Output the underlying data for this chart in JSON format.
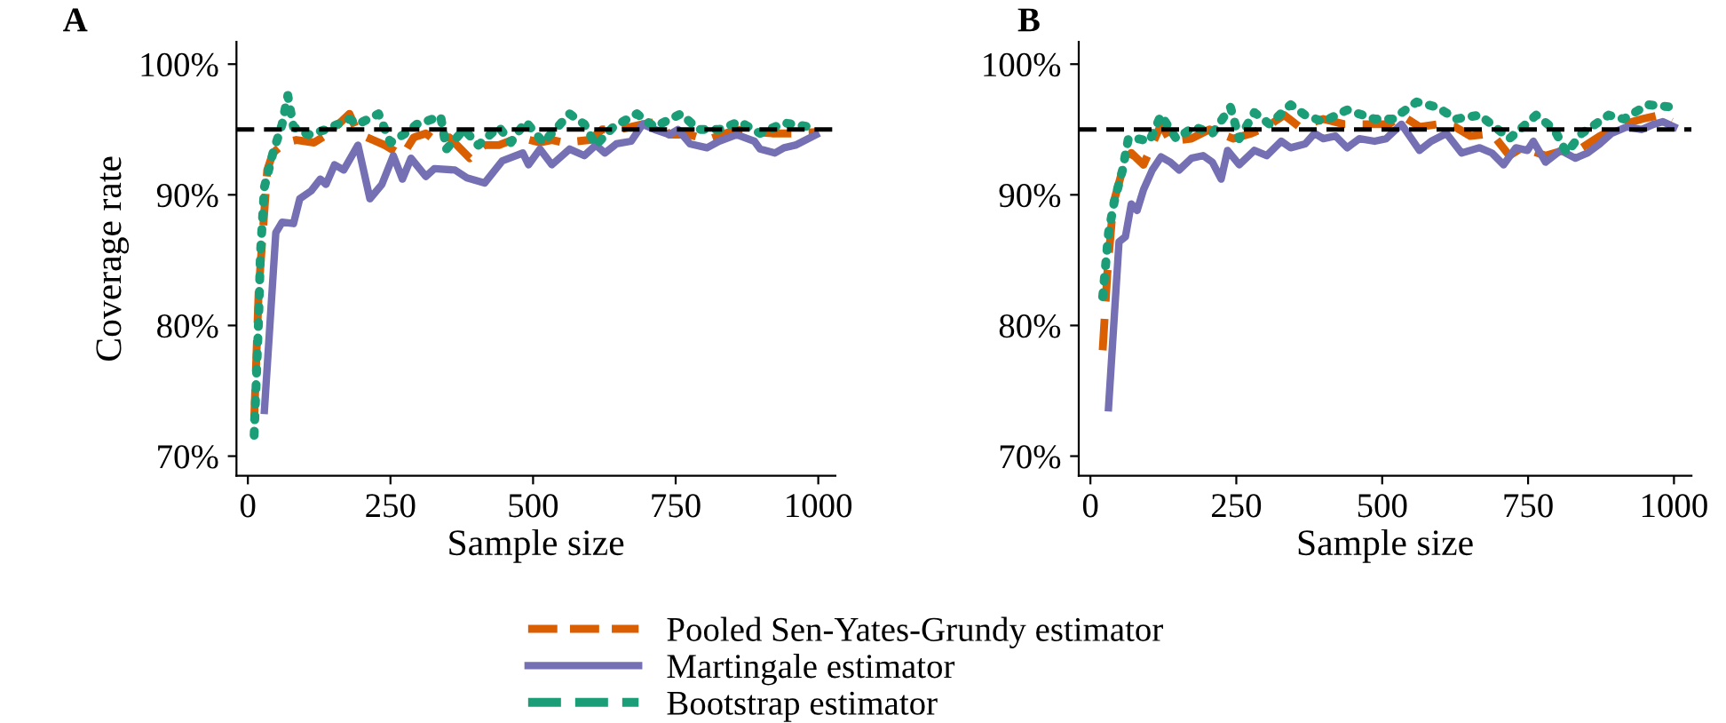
{
  "chart_data": [
    {
      "type": "line",
      "title": "A",
      "xlabel": "Sample size",
      "ylabel": "Coverage rate",
      "xlim": [
        -20,
        1030
      ],
      "xticks": [
        0,
        250,
        500,
        750,
        1000
      ],
      "ylim": [
        68.5,
        101.7
      ],
      "yticks": [
        {
          "value": 70,
          "label": "70%"
        },
        {
          "value": 80,
          "label": "80%"
        },
        {
          "value": 90,
          "label": "90%"
        },
        {
          "value": 100,
          "label": "100%"
        }
      ],
      "grid": false,
      "legend": "bottom",
      "ref_lines": [
        {
          "axis": "y",
          "value": 95,
          "color": "#000000",
          "line_style": "dashed"
        }
      ],
      "series": [
        {
          "name": "Pooled Sen-Yates-Grundy estimator",
          "color": "#d95f02",
          "line_style": "dashed",
          "x": [
            11,
            19,
            34,
            44,
            65,
            85,
            116,
            142,
            178,
            193,
            219,
            240,
            271,
            291,
            312,
            327,
            353,
            389,
            415,
            440,
            476,
            512,
            533,
            554,
            600,
            621,
            651,
            692,
            718,
            739,
            775,
            805,
            857,
            888,
            919,
            960,
            996
          ],
          "values": [
            72.7,
            82.7,
            91.9,
            93.2,
            94.0,
            94.2,
            94.0,
            94.7,
            96.2,
            94.7,
            94.2,
            93.8,
            93.0,
            94.4,
            94.7,
            94.2,
            94.4,
            92.8,
            93.8,
            93.8,
            94.4,
            94.0,
            94.2,
            94.0,
            94.2,
            95.0,
            95.0,
            95.4,
            95.6,
            94.6,
            94.6,
            94.2,
            95.0,
            94.8,
            94.7,
            94.7,
            94.8
          ]
        },
        {
          "name": "Martingale estimator",
          "color": "#7570b3",
          "line_style": "solid",
          "x": [
            29,
            49,
            60,
            80,
            91,
            111,
            127,
            137,
            152,
            168,
            193,
            214,
            235,
            255,
            271,
            286,
            312,
            327,
            363,
            384,
            415,
            446,
            482,
            492,
            512,
            533,
            564,
            590,
            610,
            626,
            646,
            672,
            692,
            713,
            739,
            754,
            775,
            805,
            826,
            857,
            888,
            898,
            924,
            940,
            960,
            996
          ],
          "values": [
            73.5,
            87.1,
            87.9,
            87.8,
            89.7,
            90.3,
            91.2,
            90.8,
            92.3,
            91.9,
            93.8,
            89.7,
            90.8,
            93.0,
            91.2,
            92.8,
            91.4,
            92.0,
            91.9,
            91.3,
            90.9,
            92.6,
            93.2,
            92.3,
            93.5,
            92.3,
            93.5,
            93.0,
            93.8,
            93.2,
            93.9,
            94.1,
            95.4,
            95.0,
            94.6,
            95.0,
            93.9,
            93.6,
            94.1,
            94.6,
            94.1,
            93.5,
            93.2,
            93.6,
            93.8,
            94.6
          ]
        },
        {
          "name": "Bootstrap estimator",
          "color": "#1b9e77",
          "line_style": "dotted",
          "x": [
            11,
            15,
            19,
            22,
            29,
            44,
            60,
            70,
            80,
            106,
            137,
            178,
            193,
            229,
            250,
            276,
            296,
            338,
            348,
            379,
            404,
            440,
            461,
            487,
            518,
            564,
            590,
            610,
            641,
            682,
            713,
            759,
            790,
            826,
            862,
            898,
            940,
            986
          ],
          "values": [
            71.6,
            76.1,
            80.7,
            85.5,
            90.6,
            93.2,
            95.4,
            97.6,
            95.2,
            94.6,
            95.0,
            95.8,
            95.4,
            96.2,
            94.0,
            94.7,
            95.4,
            96.0,
            93.5,
            95.0,
            93.8,
            95.2,
            94.0,
            95.6,
            94.0,
            96.2,
            95.4,
            93.8,
            95.2,
            96.2,
            95.2,
            96.2,
            95.0,
            95.0,
            95.6,
            94.7,
            95.5,
            95.2
          ]
        }
      ]
    },
    {
      "type": "line",
      "title": "B",
      "xlabel": "Sample size",
      "xlim": [
        -20,
        1030
      ],
      "xticks": [
        0,
        250,
        500,
        750,
        1000
      ],
      "ylim": [
        68.5,
        101.7
      ],
      "yticks": [
        {
          "value": 70,
          "label": "70%"
        },
        {
          "value": 80,
          "label": "80%"
        },
        {
          "value": 90,
          "label": "90%"
        },
        {
          "value": 100,
          "label": "100%"
        }
      ],
      "grid": false,
      "ref_lines": [
        {
          "axis": "y",
          "value": 95,
          "color": "#000000",
          "line_style": "dashed"
        }
      ],
      "series": [
        {
          "color": "#d95f02",
          "line_style": "dashed",
          "x": [
            21,
            29,
            39,
            55,
            70,
            91,
            121,
            137,
            173,
            204,
            245,
            276,
            302,
            332,
            358,
            399,
            435,
            471,
            512,
            533,
            564,
            595,
            625,
            651,
            688,
            718,
            739,
            780,
            811,
            842,
            873,
            914,
            945,
            975,
            996
          ],
          "values": [
            78.1,
            84.0,
            89.3,
            91.9,
            93.2,
            92.3,
            95.4,
            94.1,
            94.3,
            95.0,
            94.3,
            94.7,
            95.2,
            96.1,
            95.2,
            95.8,
            95.4,
            95.4,
            95.4,
            96.1,
            95.2,
            95.4,
            95.2,
            94.5,
            94.7,
            93.0,
            93.6,
            93.0,
            93.4,
            93.6,
            94.5,
            95.4,
            95.8,
            96.1,
            95.6
          ]
        },
        {
          "color": "#7570b3",
          "line_style": "solid",
          "x": [
            31,
            49,
            60,
            70,
            80,
            91,
            106,
            121,
            137,
            152,
            173,
            193,
            209,
            224,
            235,
            255,
            281,
            302,
            327,
            343,
            368,
            384,
            399,
            420,
            440,
            461,
            487,
            507,
            533,
            564,
            584,
            610,
            636,
            667,
            688,
            708,
            729,
            749,
            759,
            780,
            806,
            831,
            852,
            873,
            893,
            919,
            945,
            965,
            981,
            1000
          ],
          "values": [
            73.7,
            86.4,
            86.8,
            89.3,
            88.8,
            90.4,
            91.9,
            92.9,
            92.5,
            91.9,
            92.8,
            93.0,
            92.5,
            91.2,
            93.4,
            92.3,
            93.4,
            93.0,
            94.1,
            93.6,
            93.9,
            94.7,
            94.3,
            94.5,
            93.6,
            94.3,
            94.1,
            94.3,
            95.4,
            93.4,
            94.1,
            94.7,
            93.2,
            93.6,
            93.2,
            92.3,
            93.6,
            93.4,
            94.1,
            92.5,
            93.4,
            92.8,
            93.2,
            93.9,
            94.7,
            95.2,
            95.0,
            95.4,
            95.6,
            95.2
          ]
        },
        {
          "color": "#1b9e77",
          "line_style": "dotted",
          "x": [
            21,
            26,
            31,
            41,
            55,
            65,
            80,
            101,
            121,
            147,
            178,
            209,
            240,
            255,
            281,
            307,
            343,
            368,
            399,
            440,
            487,
            518,
            559,
            595,
            626,
            667,
            693,
            718,
            764,
            795,
            816,
            842,
            888,
            914,
            955,
            1000
          ],
          "values": [
            82.2,
            84.6,
            87.1,
            89.5,
            91.9,
            94.3,
            94.3,
            94.1,
            96.1,
            94.3,
            95.2,
            94.7,
            96.7,
            94.3,
            96.3,
            95.4,
            96.9,
            96.1,
            95.6,
            96.5,
            95.8,
            95.8,
            97.1,
            96.7,
            95.8,
            96.1,
            95.2,
            94.3,
            96.1,
            95.0,
            93.2,
            94.7,
            96.1,
            95.8,
            96.9,
            96.7
          ]
        }
      ]
    }
  ]
}
